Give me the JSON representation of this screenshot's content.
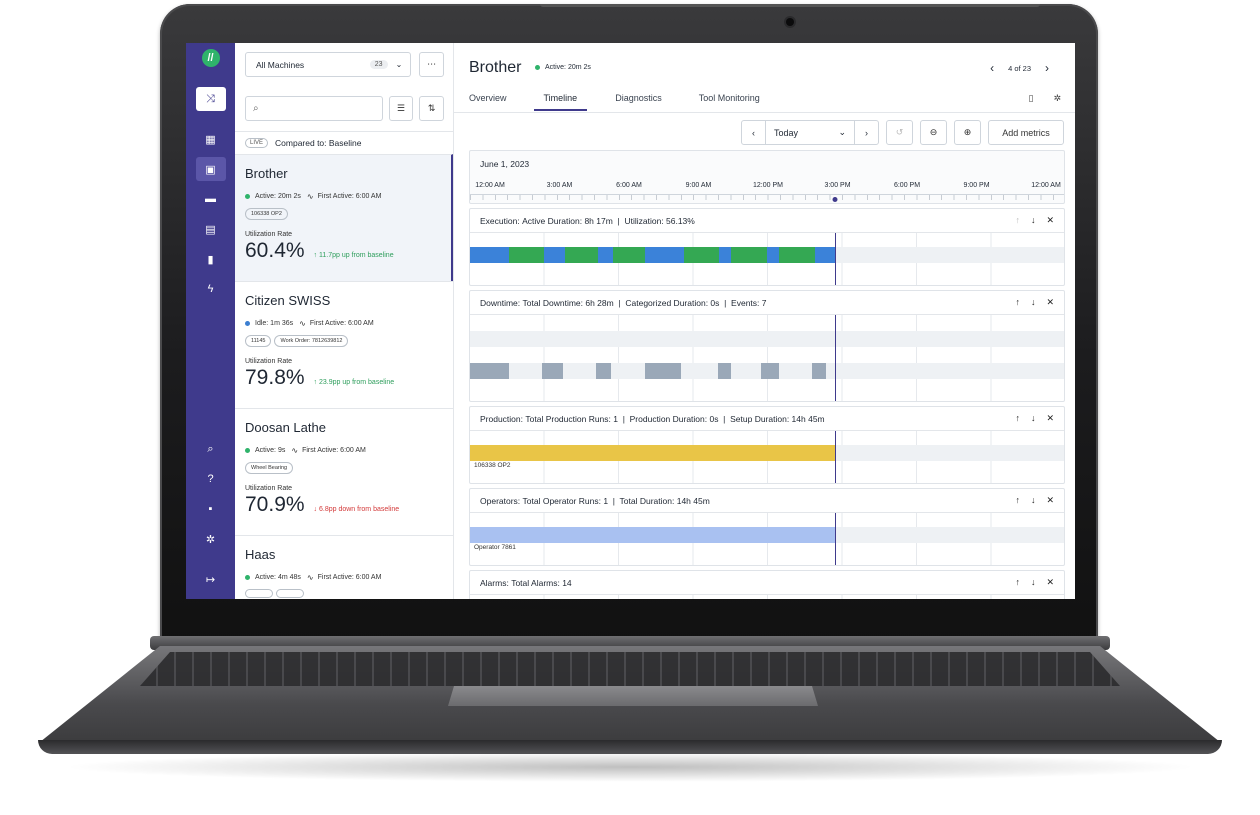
{
  "sidebar": {
    "logo": "//"
  },
  "list": {
    "filter_label": "All Machines",
    "filter_count": "23",
    "search_placeholder": "",
    "live_badge": "LIVE",
    "compared_to": "Compared to: Baseline",
    "util_label": "Utilization Rate",
    "machines": [
      {
        "name": "Brother",
        "status_text": "Active: 20m 2s",
        "status_color": "#2fb36b",
        "first_active": "First Active: 6:00 AM",
        "tags": [
          "106338 OP2"
        ],
        "util": "60.4%",
        "delta": "11.7pp up from baseline",
        "delta_color": "#2e9e5c",
        "delta_arrow": "↑"
      },
      {
        "name": "Citizen SWISS",
        "status_text": "Idle: 1m 36s",
        "status_color": "#3b7fd1",
        "first_active": "First Active: 6:00 AM",
        "tags": [
          "11145",
          "Work Order: 7812639812"
        ],
        "util": "79.8%",
        "delta": "23.9pp up from baseline",
        "delta_color": "#2e9e5c",
        "delta_arrow": "↑"
      },
      {
        "name": "Doosan Lathe",
        "status_text": "Active: 9s",
        "status_color": "#2fb36b",
        "first_active": "First Active: 6:00 AM",
        "tags": [
          "Wheel Bearing"
        ],
        "util": "70.9%",
        "delta": "6.8pp down from baseline",
        "delta_color": "#d33a3a",
        "delta_arrow": "↓"
      },
      {
        "name": "Haas",
        "status_text": "Active: 4m 48s",
        "status_color": "#2fb36b",
        "first_active": "First Active: 6:00 AM",
        "tags": [
          "",
          ""
        ],
        "util": "",
        "delta": "",
        "delta_color": "#2e9e5c",
        "delta_arrow": ""
      }
    ]
  },
  "header": {
    "title": "Brother",
    "status": "Active: 20m 2s",
    "pager": "4 of 23",
    "tabs": [
      "Overview",
      "Timeline",
      "Diagnostics",
      "Tool Monitoring"
    ],
    "active_tab": "Timeline"
  },
  "toolbar": {
    "date_value": "Today",
    "add_metrics": "Add metrics"
  },
  "timeline": {
    "date": "June 1, 2023",
    "ticks": [
      "12:00 AM",
      "3:00 AM",
      "6:00 AM",
      "9:00 AM",
      "12:00 PM",
      "3:00 PM",
      "6:00 PM",
      "9:00 PM",
      "12:00 AM"
    ],
    "now_fraction": 0.615
  },
  "panels": {
    "execution": {
      "title": "Execution:",
      "summary": "Active Duration: 8h 17m  |  Utilization: 56.13%",
      "active_color": "#34a853",
      "idle_color": "#3b82d9",
      "segments": [
        {
          "from": 0.0,
          "to": 0.065,
          "state": "idle"
        },
        {
          "from": 0.065,
          "to": 0.125,
          "state": "active"
        },
        {
          "from": 0.125,
          "to": 0.16,
          "state": "idle"
        },
        {
          "from": 0.16,
          "to": 0.215,
          "state": "active"
        },
        {
          "from": 0.215,
          "to": 0.24,
          "state": "idle"
        },
        {
          "from": 0.24,
          "to": 0.295,
          "state": "active"
        },
        {
          "from": 0.295,
          "to": 0.36,
          "state": "idle"
        },
        {
          "from": 0.36,
          "to": 0.42,
          "state": "active"
        },
        {
          "from": 0.42,
          "to": 0.44,
          "state": "idle"
        },
        {
          "from": 0.44,
          "to": 0.5,
          "state": "active"
        },
        {
          "from": 0.5,
          "to": 0.52,
          "state": "idle"
        },
        {
          "from": 0.52,
          "to": 0.58,
          "state": "active"
        },
        {
          "from": 0.58,
          "to": 0.615,
          "state": "idle"
        }
      ]
    },
    "downtime": {
      "title": "Downtime:",
      "summary": "Total Downtime: 6h 28m  |  Categorized Duration: 0s  |  Events: 7",
      "color": "#9aa8b8",
      "segments": [
        {
          "from": 0.0,
          "to": 0.065
        },
        {
          "from": 0.122,
          "to": 0.157
        },
        {
          "from": 0.212,
          "to": 0.238
        },
        {
          "from": 0.295,
          "to": 0.355
        },
        {
          "from": 0.418,
          "to": 0.44
        },
        {
          "from": 0.49,
          "to": 0.52
        },
        {
          "from": 0.575,
          "to": 0.6
        }
      ]
    },
    "production": {
      "title": "Production:",
      "summary": "Total Production Runs: 1  |  Production Duration: 0s  |  Setup Duration: 14h 45m",
      "color": "#e9c547",
      "caption": "106338 OP2",
      "segments": [
        {
          "from": 0.0,
          "to": 0.615
        }
      ]
    },
    "operators": {
      "title": "Operators:",
      "summary": "Total Operator Runs: 1  |  Total Duration: 14h 45m",
      "color": "#a9c1f1",
      "caption": "Operator 7861",
      "segments": [
        {
          "from": 0.0,
          "to": 0.615
        }
      ]
    },
    "alarms": {
      "title": "Alarms:",
      "summary": "Total Alarms: 14"
    }
  }
}
